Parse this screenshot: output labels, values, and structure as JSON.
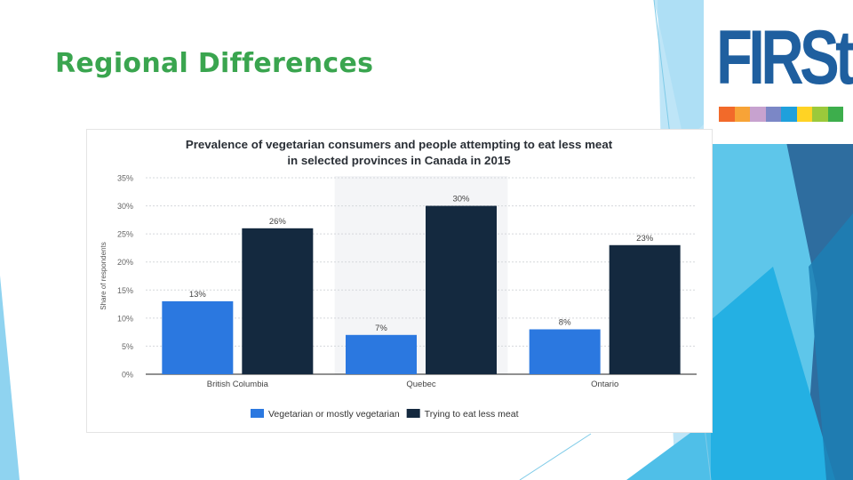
{
  "slide": {
    "title": "Regional Differences"
  },
  "logo": {
    "text": "FIRSt",
    "text_color": "#1f5f9f",
    "strip_colors": [
      "#f26a2a",
      "#f7a337",
      "#c7a2cf",
      "#7b87c6",
      "#1fa0dc",
      "#ffd324",
      "#9bc93b",
      "#3dae4c"
    ]
  },
  "colors": {
    "title_green": "#3aa54f",
    "series_vegetarian": "#2b78e0",
    "series_less_meat": "#14293f"
  },
  "chart_data": {
    "type": "bar",
    "title_lines": [
      "Prevalence of vegetarian consumers and people attempting to eat less meat",
      "in selected provinces in Canada in 2015"
    ],
    "ylabel": "Share of respondents",
    "xlabel": "",
    "categories": [
      "British Columbia",
      "Quebec",
      "Ontario"
    ],
    "series": [
      {
        "name": "Vegetarian or mostly vegetarian",
        "values": [
          13,
          7,
          8
        ],
        "color": "#2b78e0"
      },
      {
        "name": "Trying to eat less meat",
        "values": [
          26,
          30,
          23
        ],
        "color": "#14293f"
      }
    ],
    "data_labels": [
      [
        "13%",
        "7%",
        "8%"
      ],
      [
        "26%",
        "30%",
        "23%"
      ]
    ],
    "ylim": [
      0,
      35
    ],
    "yticks": [
      0,
      5,
      10,
      15,
      20,
      25,
      30,
      35
    ],
    "ytick_labels": [
      "0%",
      "5%",
      "10%",
      "15%",
      "20%",
      "25%",
      "30%",
      "35%"
    ],
    "grid": true,
    "highlighted_category": "Quebec",
    "legend_position": "bottom"
  }
}
